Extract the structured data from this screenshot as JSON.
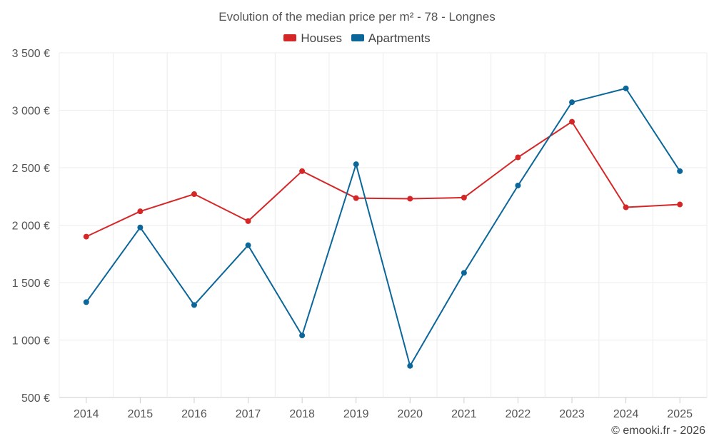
{
  "chart_data": {
    "type": "line",
    "title": "Evolution of the median price per m² - 78 - Longnes",
    "categories": [
      "2014",
      "2015",
      "2016",
      "2017",
      "2018",
      "2019",
      "2020",
      "2021",
      "2022",
      "2023",
      "2024",
      "2025"
    ],
    "series": [
      {
        "name": "Houses",
        "color": "#d62728",
        "values": [
          1900,
          2120,
          2270,
          2035,
          2470,
          2235,
          2230,
          2240,
          2590,
          2900,
          2155,
          2180
        ]
      },
      {
        "name": "Apartments",
        "color": "#0b6699",
        "values": [
          1330,
          1980,
          1305,
          1825,
          1040,
          2530,
          775,
          1585,
          2345,
          3070,
          3190,
          2470
        ]
      }
    ],
    "ylim": [
      500,
      3500
    ],
    "yticks": [
      500,
      1000,
      1500,
      2000,
      2500,
      3000,
      3500
    ],
    "ytick_labels": [
      "500 €",
      "1 000 €",
      "1 500 €",
      "2 000 €",
      "2 500 €",
      "3 000 €",
      "3 500 €"
    ],
    "grid": true,
    "legend_position": "top-center",
    "xlabel": "",
    "ylabel": ""
  },
  "credit": "© emooki.fr - 2026"
}
